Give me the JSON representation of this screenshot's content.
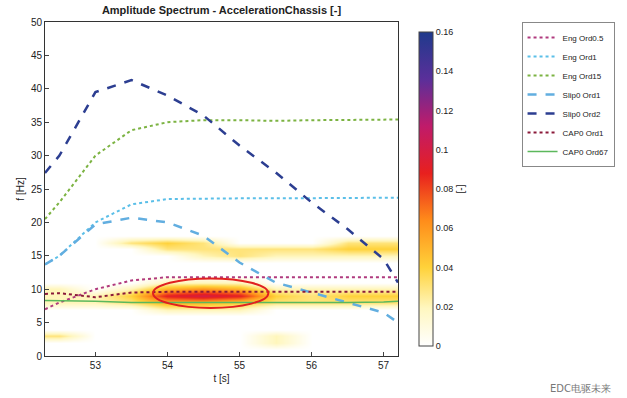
{
  "chart_data": {
    "type": "heatmap",
    "title": "Amplitude Spectrum - AccelerationChassis [-]",
    "x_label": "t [s]",
    "y_label": "f [Hz]",
    "xlim": [
      52.3,
      57.2
    ],
    "xticks": [
      53,
      54,
      55,
      56,
      57
    ],
    "ylim": [
      0,
      50
    ],
    "yticks": [
      0,
      5,
      10,
      15,
      20,
      25,
      30,
      35,
      40,
      45,
      50
    ],
    "grid": false,
    "legend": "outside right",
    "heatmap": {
      "x": [
        52.5,
        53,
        53.5,
        54,
        54.5,
        55,
        55.5,
        56,
        56.5,
        57
      ],
      "y": [
        1,
        2,
        3,
        4,
        5,
        6,
        7,
        8,
        9,
        10,
        11,
        12,
        13,
        14,
        15,
        16,
        17,
        18,
        19
      ],
      "z": [
        [
          0,
          0,
          0,
          0,
          0,
          0,
          0,
          0,
          0,
          0
        ],
        [
          0,
          0,
          0,
          0,
          0,
          0,
          0.02,
          0,
          0,
          0
        ],
        [
          0.03,
          0,
          0,
          0,
          0,
          0,
          0.02,
          0,
          0,
          0
        ],
        [
          0,
          0,
          0,
          0,
          0,
          0,
          0,
          0,
          0,
          0
        ],
        [
          0,
          0,
          0,
          0,
          0,
          0,
          0,
          0,
          0,
          0
        ],
        [
          0,
          0,
          0,
          0,
          0,
          0,
          0,
          0,
          0,
          0
        ],
        [
          0,
          0,
          0,
          0.02,
          0.02,
          0.02,
          0,
          0,
          0,
          0
        ],
        [
          0.02,
          0.02,
          0.03,
          0.05,
          0.05,
          0.04,
          0.03,
          0.03,
          0.03,
          0.03
        ],
        [
          0.02,
          0.02,
          0.04,
          0.09,
          0.1,
          0.09,
          0.04,
          0.03,
          0.04,
          0.04
        ],
        [
          0.02,
          0,
          0.02,
          0.05,
          0.06,
          0.05,
          0.02,
          0.02,
          0.02,
          0.02
        ],
        [
          0,
          0,
          0,
          0.02,
          0.02,
          0.02,
          0,
          0,
          0,
          0
        ],
        [
          0,
          0,
          0,
          0,
          0,
          0,
          0,
          0,
          0,
          0
        ],
        [
          0,
          0,
          0,
          0,
          0,
          0,
          0,
          0,
          0,
          0
        ],
        [
          0,
          0,
          0,
          0,
          0,
          0,
          0,
          0,
          0,
          0
        ],
        [
          0,
          0,
          0,
          0,
          0.02,
          0.03,
          0.02,
          0.02,
          0.02,
          0.02
        ],
        [
          0,
          0,
          0,
          0.03,
          0.03,
          0.03,
          0.03,
          0.03,
          0.04,
          0.04
        ],
        [
          0,
          0,
          0.03,
          0.04,
          0.03,
          0,
          0,
          0,
          0.03,
          0.03
        ],
        [
          0,
          0,
          0,
          0,
          0,
          0,
          0,
          0,
          0,
          0
        ],
        [
          0,
          0,
          0,
          0,
          0,
          0,
          0,
          0,
          0,
          0
        ]
      ],
      "zlim": [
        0,
        0.16
      ],
      "zticks": [
        0,
        0.02,
        0.04,
        0.06,
        0.08,
        0.1,
        0.12,
        0.14,
        0.16
      ],
      "colorbar_label": "[-]"
    },
    "x": [
      52.3,
      52.5,
      53,
      53.5,
      54,
      54.5,
      55,
      55.5,
      56,
      56.5,
      57,
      57.2
    ],
    "series": [
      {
        "name": "Eng Ord0.5",
        "color": "#b03a7e",
        "line_style": "dot",
        "values": [
          7,
          8,
          10,
          11.3,
          11.8,
          11.8,
          11.8,
          11.8,
          11.8,
          11.8,
          11.8,
          11.8
        ]
      },
      {
        "name": "Eng Ord1",
        "color": "#5bbfe8",
        "line_style": "dot",
        "values": [
          13.7,
          15,
          20,
          22.7,
          23.5,
          23.6,
          23.6,
          23.6,
          23.6,
          23.7,
          23.7,
          23.7
        ]
      },
      {
        "name": "Eng Ord15",
        "color": "#7cb342",
        "line_style": "dot",
        "values": [
          20.5,
          23,
          30,
          33.8,
          35,
          35.3,
          35.3,
          35.2,
          35.3,
          35.3,
          35.3,
          35.4
        ]
      },
      {
        "name": "Slip0 Ord1",
        "color": "#62aee0",
        "line_style": "dash",
        "values": [
          13.7,
          15,
          19.7,
          20.7,
          20,
          18,
          14,
          11,
          9.5,
          8,
          6.5,
          5
        ]
      },
      {
        "name": "Slip0 Ord2",
        "color": "#2c3e91",
        "line_style": "dash",
        "values": [
          27.4,
          30,
          39.5,
          41.3,
          39,
          36,
          31.5,
          27.5,
          23,
          19,
          14.5,
          11
        ]
      },
      {
        "name": "CAP0 Ord1",
        "color": "#8b1a3a",
        "line_style": "dot",
        "values": [
          9.3,
          9.4,
          8.8,
          9.5,
          9.6,
          9.6,
          9.6,
          9.6,
          9.6,
          9.6,
          9.6,
          9.6
        ]
      },
      {
        "name": "CAP0 Ord67",
        "color": "#5cb85c",
        "line_style": "solid",
        "values": [
          8.3,
          8.3,
          8.2,
          8,
          8,
          7.9,
          8,
          8,
          8,
          8,
          8.1,
          8.2
        ]
      }
    ],
    "highlight": {
      "x": [
        53.8,
        55.4
      ],
      "y": [
        7.2,
        11.6
      ],
      "color": "#e02020"
    },
    "watermark": "EDC电驱未来"
  }
}
